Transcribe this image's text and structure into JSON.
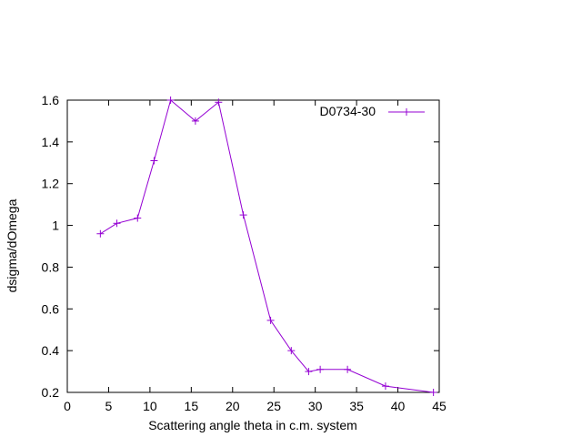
{
  "chart_data": {
    "type": "line",
    "title": "",
    "xlabel": "Scattering angle theta in c.m. system",
    "ylabel": "dsigma/dOmega",
    "xlim": [
      0,
      45
    ],
    "ylim": [
      0.2,
      1.6
    ],
    "xticks": [
      0,
      5,
      10,
      15,
      20,
      25,
      30,
      35,
      40,
      45
    ],
    "yticks": [
      0.2,
      0.4,
      0.6,
      0.8,
      1,
      1.2,
      1.4,
      1.6
    ],
    "xtick_labels": [
      "0",
      "5",
      "10",
      "15",
      "20",
      "25",
      "30",
      "35",
      "40",
      "45"
    ],
    "ytick_labels": [
      "0.2",
      "0.4",
      "0.6",
      "0.8",
      "1",
      "1.2",
      "1.4",
      "1.6"
    ],
    "grid": false,
    "legend_position": "top-right",
    "series": [
      {
        "name": "D0734-30",
        "color": "#9400d3",
        "marker": "plus",
        "x": [
          4.0,
          6.0,
          8.5,
          10.5,
          12.5,
          15.5,
          18.3,
          21.3,
          24.6,
          27.1,
          29.2,
          30.6,
          33.9,
          38.5,
          44.3
        ],
        "y": [
          0.96,
          1.01,
          1.035,
          1.31,
          1.6,
          1.5,
          1.59,
          1.05,
          0.545,
          0.4,
          0.3,
          0.31,
          0.31,
          0.23,
          0.2
        ]
      }
    ]
  }
}
